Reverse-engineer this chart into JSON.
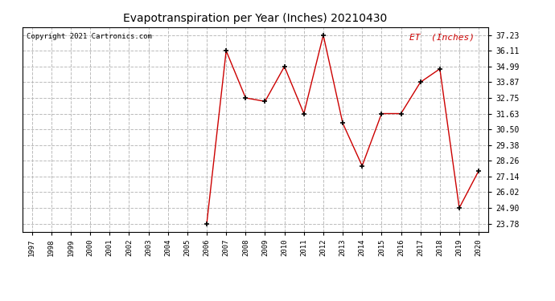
{
  "title": "Evapotranspiration per Year (Inches) 20210430",
  "copyright": "Copyright 2021 Cartronics.com",
  "legend_label": "ET  (Inches)",
  "x_years": [
    2006,
    2007,
    2008,
    2009,
    2010,
    2011,
    2012,
    2013,
    2014,
    2015,
    2016,
    2017,
    2018,
    2019,
    2020
  ],
  "y_values": [
    23.78,
    36.11,
    32.75,
    32.5,
    34.99,
    31.63,
    37.23,
    30.95,
    27.9,
    31.63,
    31.63,
    33.87,
    34.82,
    24.9,
    27.55
  ],
  "all_years": [
    1997,
    1998,
    1999,
    2000,
    2001,
    2002,
    2003,
    2004,
    2005,
    2006,
    2007,
    2008,
    2009,
    2010,
    2011,
    2012,
    2013,
    2014,
    2015,
    2016,
    2017,
    2018,
    2019,
    2020
  ],
  "yticks": [
    23.78,
    24.9,
    26.02,
    27.14,
    28.26,
    29.38,
    30.5,
    31.63,
    32.75,
    33.87,
    34.99,
    36.11,
    37.23
  ],
  "xlim": [
    1996.5,
    2020.5
  ],
  "ylim": [
    23.2,
    37.8
  ],
  "line_color": "#cc0000",
  "marker_color": "#000000",
  "grid_color": "#bbbbbb",
  "bg_color": "#ffffff",
  "title_color": "#000000",
  "copyright_color": "#000000",
  "legend_color": "#cc0000"
}
